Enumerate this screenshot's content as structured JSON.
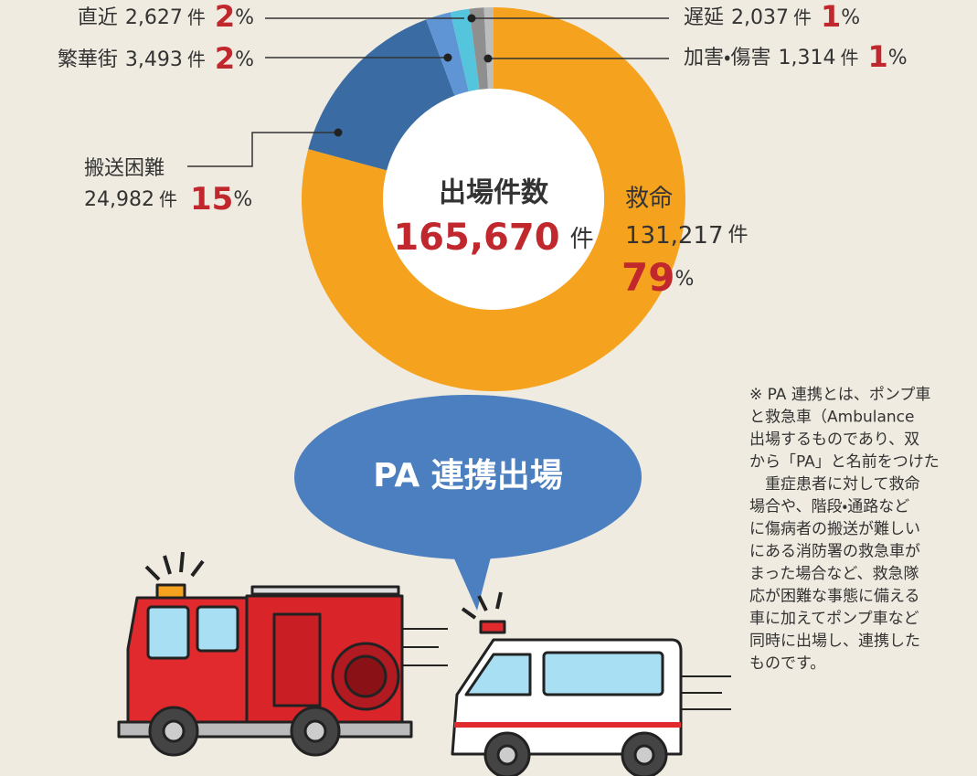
{
  "chart_data": {
    "type": "pie",
    "donut": true,
    "center_title": "出場件数",
    "total": {
      "value": 165670,
      "label": "165,670"
    },
    "unit": "件",
    "percent_unit": "%",
    "categories": [
      "救命",
      "搬送困難",
      "繁華街",
      "直近",
      "遅延",
      "加害・傷害"
    ],
    "values": [
      131217,
      24982,
      3493,
      2627,
      2037,
      1314
    ],
    "value_labels": [
      "131,217",
      "24,982",
      "3,493",
      "2,627",
      "2,037",
      "1,314"
    ],
    "percents": [
      79,
      15,
      2,
      2,
      1,
      1
    ],
    "colors": [
      "#f5a31f",
      "#3a6ca3",
      "#5f95d4",
      "#55c4dd",
      "#8f8f8f",
      "#bdbdbd"
    ]
  },
  "bubble": {
    "label": "PA 連携出場"
  },
  "note": {
    "lines": [
      "※ PA 連携とは、ポンプ車",
      "と救急車（Ambulance",
      "出場するものであり、双",
      "から「PA」と名前をつけた",
      "　重症患者に対して救命",
      "場合や、階段・通路など",
      "に傷病者の搬送が難しい",
      "にある消防署の救急車が",
      "まった場合など、救急隊",
      "応が困難な事態に備える",
      "車に加えてポンプ車など",
      "同時に出場し、連携した",
      "ものです。"
    ]
  }
}
